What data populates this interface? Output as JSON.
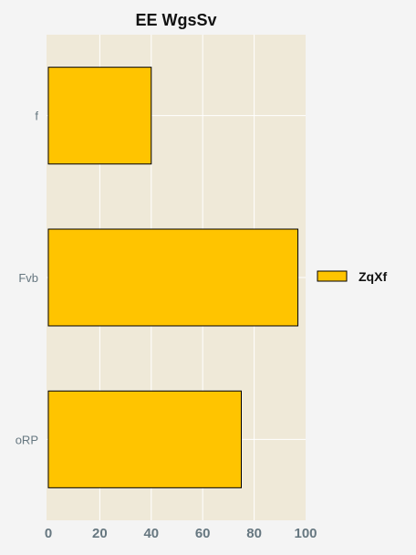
{
  "chart_data": {
    "type": "bar",
    "orientation": "horizontal",
    "title": "EE WgsSv",
    "categories": [
      "f",
      "Fvb",
      "oRP"
    ],
    "series": [
      {
        "name": "ZqXf",
        "values": [
          40,
          97,
          75
        ],
        "color": "#ffc400"
      }
    ],
    "xlim": [
      0,
      100
    ],
    "xticks": [
      0,
      20,
      40,
      60,
      80,
      100
    ],
    "grid": true,
    "legend": "right",
    "colors": {
      "plot_background": "#efe9d8",
      "page_background": "#f4f4f4",
      "grid": "#ffffff",
      "tick_label": "#667780"
    }
  }
}
